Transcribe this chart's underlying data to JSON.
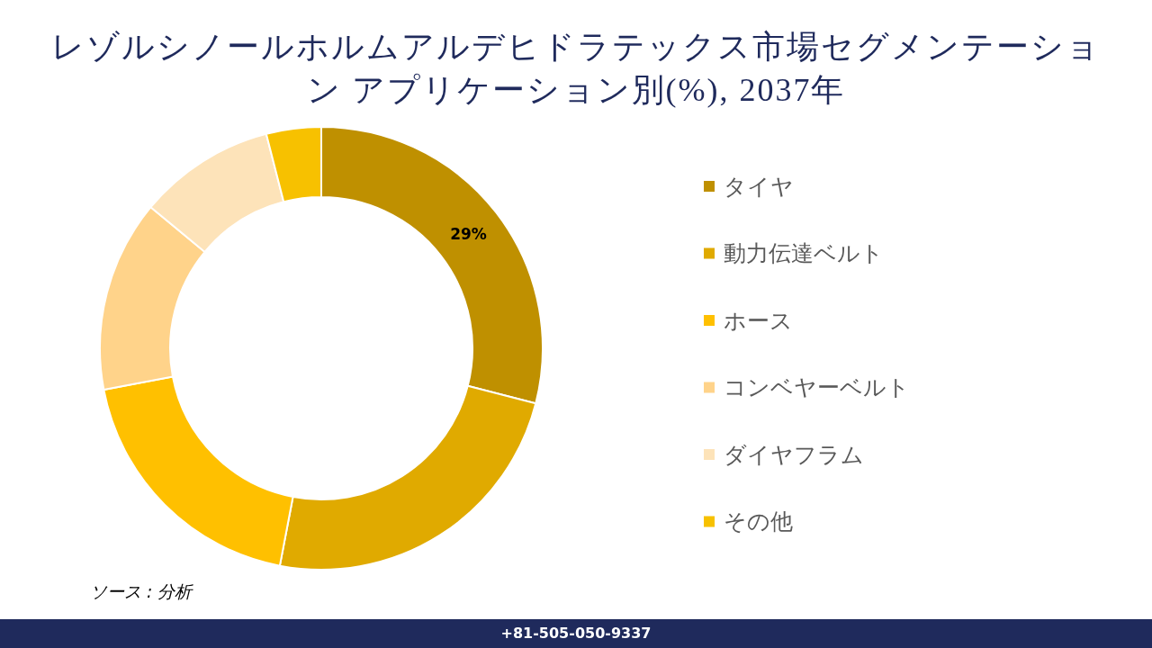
{
  "chart_data": {
    "type": "donut",
    "title": "レゾルシノールホルムアルデヒドラテックス市場セグメンテーション アプリケーション別(%), 2037年",
    "categories": [
      "タイヤ",
      "動力伝達ベルト",
      "ホース",
      "コンベヤーベルト",
      "ダイヤフラム",
      "その他"
    ],
    "values": [
      29,
      24,
      19,
      14,
      10,
      4
    ],
    "colors": [
      "#bf9000",
      "#e0aa00",
      "#ffc000",
      "#ffd38a",
      "#fde3b9",
      "#f7c100"
    ],
    "value_labels": [
      "29%",
      null,
      null,
      null,
      null,
      null
    ],
    "legend": "right",
    "annotations": [
      "ソース : 分析",
      "+81-505-050-9337"
    ]
  }
}
